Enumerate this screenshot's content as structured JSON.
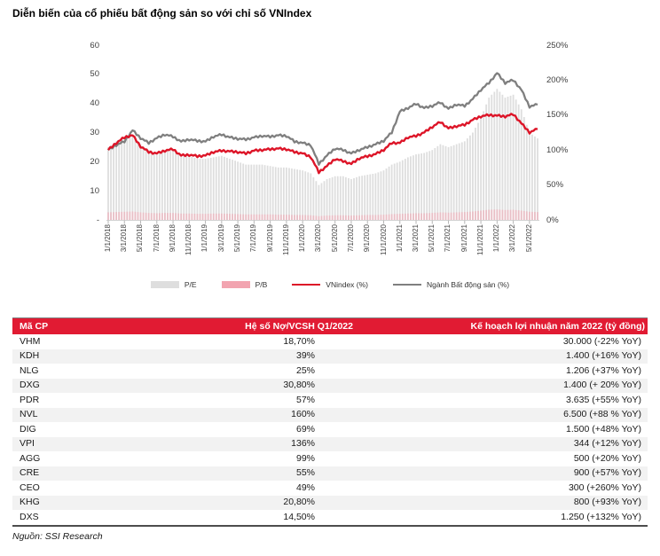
{
  "title": "Diễn biến của cổ phiếu bất động sản so với chỉ số VNIndex",
  "source": "Nguồn: SSI Research",
  "colors": {
    "accent_red": "#e11b33",
    "line_red": "#dd1528",
    "line_gray": "#7f7f7f",
    "pe_bar": "#dedede",
    "pb_bar": "#f2a4b0",
    "row_alt": "#f2f2f2"
  },
  "chart_data": {
    "type": "line",
    "title": "Diễn biến của cổ phiếu bất động sản so với chỉ số VNIndex",
    "months": 54,
    "left_axis": {
      "min": 0,
      "max": 60,
      "ticks": [
        "60",
        "50",
        "40",
        "30",
        "20",
        "10",
        "-"
      ],
      "tick_values": [
        60,
        50,
        40,
        30,
        20,
        10,
        0
      ]
    },
    "right_axis": {
      "min": 0,
      "max": 250,
      "ticks": [
        "250%",
        "200%",
        "150%",
        "100%",
        "50%",
        "0%"
      ],
      "tick_values": [
        250,
        200,
        150,
        100,
        50,
        0
      ]
    },
    "x_tick_labels": [
      "1/1/2018",
      "3/1/2018",
      "5/1/2018",
      "7/1/2018",
      "9/1/2018",
      "11/1/2018",
      "1/1/2019",
      "3/1/2019",
      "5/1/2019",
      "7/1/2019",
      "9/1/2019",
      "11/1/2019",
      "1/1/2020",
      "3/1/2020",
      "5/1/2020",
      "7/1/2020",
      "9/1/2020",
      "11/1/2020",
      "1/1/2021",
      "3/1/2021",
      "5/1/2021",
      "7/1/2021",
      "9/1/2021",
      "11/1/2021",
      "1/1/2022",
      "3/1/2022",
      "5/1/2022"
    ],
    "series": [
      {
        "name": "P/E",
        "type": "bar",
        "axis": "left",
        "color": "#dedede",
        "values": [
          25,
          27,
          28.5,
          29,
          26,
          24,
          23,
          24,
          24,
          22.5,
          22,
          21,
          21,
          21.5,
          22,
          21,
          20,
          19,
          19,
          19,
          18.5,
          18,
          18,
          17.5,
          17,
          16,
          12,
          14,
          15,
          15,
          14,
          15,
          15.5,
          16,
          17,
          19,
          20,
          21.5,
          22.5,
          23,
          24,
          26,
          25,
          26,
          27,
          30,
          35,
          42,
          45,
          42,
          43,
          38,
          30,
          28
        ]
      },
      {
        "name": "P/B",
        "type": "bar",
        "axis": "left",
        "color": "#f2a4b0",
        "values": [
          2.6,
          2.7,
          2.8,
          2.9,
          2.6,
          2.4,
          2.3,
          2.4,
          2.4,
          2.2,
          2.2,
          2.1,
          2.1,
          2.2,
          2.2,
          2.1,
          2.0,
          1.9,
          1.9,
          1.9,
          1.9,
          1.8,
          1.8,
          1.7,
          1.7,
          1.6,
          1.3,
          1.5,
          1.6,
          1.6,
          1.5,
          1.6,
          1.7,
          1.7,
          1.8,
          2.0,
          2.1,
          2.2,
          2.3,
          2.3,
          2.4,
          2.6,
          2.5,
          2.6,
          2.7,
          2.9,
          3.2,
          3.5,
          3.6,
          3.4,
          3.5,
          3.2,
          2.8,
          2.7
        ]
      },
      {
        "name": "VNindex (%)",
        "type": "line",
        "axis": "right",
        "color": "#dd1528",
        "values": [
          100,
          110,
          118,
          121,
          105,
          97,
          95,
          99,
          101,
          92,
          93,
          91,
          92,
          97,
          99,
          98,
          97,
          95,
          99,
          100,
          101,
          102,
          101,
          97,
          95,
          90,
          68,
          77,
          87,
          84,
          80,
          88,
          91,
          94,
          100,
          110,
          110,
          118,
          120,
          125,
          133,
          140,
          131,
          134,
          136,
          143,
          148,
          150,
          149,
          148,
          151,
          138,
          125,
          130
        ]
      },
      {
        "name": "Ngành Bất động sản (%)",
        "type": "line",
        "axis": "right",
        "color": "#7f7f7f",
        "values": [
          100,
          107,
          112,
          128,
          117,
          110,
          117,
          122,
          119,
          112,
          115,
          113,
          112,
          119,
          122,
          118,
          116,
          115,
          118,
          120,
          119,
          121,
          120,
          112,
          110,
          107,
          80,
          92,
          102,
          100,
          95,
          100,
          104,
          108,
          113,
          125,
          155,
          160,
          166,
          160,
          163,
          168,
          159,
          165,
          163,
          173,
          186,
          196,
          210,
          196,
          200,
          186,
          162,
          165
        ]
      }
    ]
  },
  "legend": [
    {
      "label": "P/E",
      "kind": "bar",
      "color": "#dedede"
    },
    {
      "label": "P/B",
      "kind": "bar",
      "color": "#f2a4b0"
    },
    {
      "label": "VNindex (%)",
      "kind": "line",
      "color": "#dd1528"
    },
    {
      "label": "Ngành Bất động sản (%)",
      "kind": "line",
      "color": "#7f7f7f"
    }
  ],
  "table": {
    "headers": [
      "Mã CP",
      "Hệ số Nợ/VCSH Q1/2022",
      "Kế hoạch lợi nhuận năm 2022 (tỷ đồng)"
    ],
    "rows": [
      [
        "VHM",
        "18,70%",
        "30.000 (-22% YoY)"
      ],
      [
        "KDH",
        "39%",
        "1.400 (+16% YoY)"
      ],
      [
        "NLG",
        "25%",
        "1.206 (+37% YoY)"
      ],
      [
        "DXG",
        "30,80%",
        "1.400 (+ 20% YoY)"
      ],
      [
        "PDR",
        "57%",
        "3.635 (+55% YoY)"
      ],
      [
        "NVL",
        "160%",
        "6.500 (+88 % YoY)"
      ],
      [
        "DIG",
        "69%",
        "1.500 (+48% YoY)"
      ],
      [
        "VPI",
        "136%",
        "344 (+12% YoY)"
      ],
      [
        "AGG",
        "99%",
        "500 (+20% YoY)"
      ],
      [
        "CRE",
        "55%",
        "900 (+57% YoY)"
      ],
      [
        "CEO",
        "49%",
        "300 (+260% YoY)"
      ],
      [
        "KHG",
        "20,80%",
        "800 (+93% YoY)"
      ],
      [
        "DXS",
        "14,50%",
        "1.250 (+132% YoY)"
      ]
    ]
  }
}
